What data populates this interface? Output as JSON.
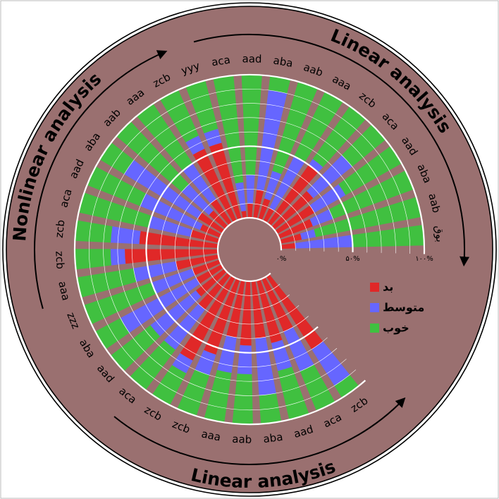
{
  "chart_data": {
    "type": "bar",
    "layout": "radial-stacked",
    "colors": {
      "background": "#9a7070",
      "bad": "#e02828",
      "medium": "#6666ff",
      "good": "#40c040",
      "grid": "#ffffff"
    },
    "series": [
      {
        "key": "bad",
        "name": "بد"
      },
      {
        "key": "medium",
        "name": "متوسط"
      },
      {
        "key": "good",
        "name": "خوب"
      }
    ],
    "ticks": [
      "۰%",
      "۵۰%",
      "۱۰۰%"
    ],
    "groups": [
      {
        "label": "Linear analysis"
      },
      {
        "label": "Nonlinear analysis"
      },
      {
        "label": "Linear analysis"
      }
    ],
    "categories": [
      {
        "label": "بوق",
        "bad": 10,
        "medium": 40,
        "good": 50
      },
      {
        "label": "aab",
        "bad": 15,
        "medium": 10,
        "good": 75
      },
      {
        "label": "aba",
        "bad": 25,
        "medium": 15,
        "good": 60
      },
      {
        "label": "aad",
        "bad": 30,
        "medium": 25,
        "good": 45
      },
      {
        "label": "aca",
        "bad": 35,
        "medium": 35,
        "good": 30
      },
      {
        "label": "zcb",
        "bad": 50,
        "medium": 5,
        "good": 45
      },
      {
        "label": "aaa",
        "bad": 10,
        "medium": 40,
        "good": 50
      },
      {
        "label": "aab",
        "bad": 15,
        "medium": 20,
        "good": 65
      },
      {
        "label": "aba",
        "bad": 20,
        "medium": 70,
        "good": 10
      },
      {
        "label": "aad",
        "bad": 10,
        "medium": 20,
        "good": 70
      },
      {
        "label": "aca",
        "bad": 5,
        "medium": 20,
        "good": 75
      },
      {
        "label": "yyy",
        "bad": 55,
        "medium": 10,
        "good": 35
      },
      {
        "label": "zcb",
        "bad": 55,
        "medium": 10,
        "good": 35
      },
      {
        "label": "aaa",
        "bad": 20,
        "medium": 30,
        "good": 50
      },
      {
        "label": "aab",
        "bad": 15,
        "medium": 25,
        "good": 60
      },
      {
        "label": "aba",
        "bad": 20,
        "medium": 60,
        "good": 20
      },
      {
        "label": "aad",
        "bad": 15,
        "medium": 45,
        "good": 40
      },
      {
        "label": "aca",
        "bad": 20,
        "medium": 30,
        "good": 50
      },
      {
        "label": "zcb",
        "bad": 55,
        "medium": 20,
        "good": 25
      },
      {
        "label": "zcb",
        "bad": 65,
        "medium": 10,
        "good": 25
      },
      {
        "label": "aaa",
        "bad": 30,
        "medium": 30,
        "good": 40
      },
      {
        "label": "zzz",
        "bad": 20,
        "medium": 30,
        "good": 50
      },
      {
        "label": "aba",
        "bad": 20,
        "medium": 60,
        "good": 20
      },
      {
        "label": "aad",
        "bad": 25,
        "medium": 40,
        "good": 35
      },
      {
        "label": "aca",
        "bad": 30,
        "medium": 35,
        "good": 35
      },
      {
        "label": "zcb",
        "bad": 65,
        "medium": 10,
        "good": 25
      },
      {
        "label": "zcb",
        "bad": 55,
        "medium": 15,
        "good": 30
      },
      {
        "label": "aaa",
        "bad": 40,
        "medium": 25,
        "good": 35
      },
      {
        "label": "aab",
        "bad": 45,
        "medium": 20,
        "good": 35
      },
      {
        "label": "aba",
        "bad": 40,
        "medium": 40,
        "good": 20
      },
      {
        "label": "aad",
        "bad": 45,
        "medium": 20,
        "good": 35
      },
      {
        "label": "aca",
        "bad": 40,
        "medium": 30,
        "good": 30
      },
      {
        "label": "zcb",
        "bad": 60,
        "medium": 30,
        "good": 10
      }
    ]
  }
}
